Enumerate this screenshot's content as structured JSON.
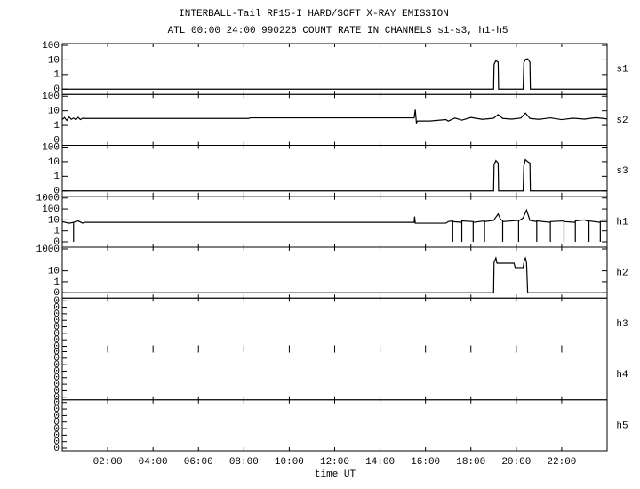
{
  "header": {
    "title": "INTERBALL-Tail RF15-I HARD/SOFT X-RAY EMISSION",
    "subtitle": "ATL 00:00 24:00 990226  COUNT RATE IN CHANNELS s1-s3, h1-h5"
  },
  "x_axis": {
    "label": "time UT",
    "xlim": [
      0,
      24
    ],
    "xticks": [
      {
        "value": 2,
        "label": "02:00"
      },
      {
        "value": 4,
        "label": "04:00"
      },
      {
        "value": 6,
        "label": "06:00"
      },
      {
        "value": 8,
        "label": "08:00"
      },
      {
        "value": 10,
        "label": "10:00"
      },
      {
        "value": 12,
        "label": "12:00"
      },
      {
        "value": 14,
        "label": "14:00"
      },
      {
        "value": 16,
        "label": "16:00"
      },
      {
        "value": 18,
        "label": "18:00"
      },
      {
        "value": 20,
        "label": "20:00"
      },
      {
        "value": 22,
        "label": "22:00"
      }
    ]
  },
  "chart_data": [
    {
      "type": "line",
      "name": "s1",
      "log_scale": true,
      "ylim": [
        0.1,
        100
      ],
      "yticks": [
        {
          "value": 0.1,
          "label": "0"
        },
        1,
        10,
        100
      ],
      "series": [
        {
          "color": "#000000",
          "x": [
            0,
            19.0,
            19.02,
            19.1,
            19.2,
            19.22,
            20.3,
            20.33,
            20.4,
            20.5,
            20.6,
            20.62,
            24
          ],
          "values": [
            0.1,
            0.1,
            5,
            9,
            7,
            0.1,
            0.1,
            6,
            11,
            12,
            7,
            0.1,
            0.1
          ]
        }
      ]
    },
    {
      "type": "line",
      "name": "s2",
      "log_scale": true,
      "ylim": [
        0.1,
        100
      ],
      "yticks": [
        {
          "value": 0.1,
          "label": "0"
        },
        1,
        10,
        100
      ],
      "series": [
        {
          "color": "#000000",
          "x": [
            0,
            0.1,
            0.2,
            0.3,
            0.4,
            0.5,
            0.6,
            0.7,
            0.8,
            0.9,
            1.0,
            8.2,
            8.3,
            15.5,
            15.55,
            15.6,
            15.65,
            16.2,
            16.9,
            17.0,
            17.3,
            17.6,
            18.0,
            18.5,
            19.0,
            19.2,
            19.4,
            19.8,
            20.2,
            20.4,
            20.6,
            21.0,
            21.5,
            22.0,
            22.5,
            23.0,
            23.5,
            24.0
          ],
          "values": [
            2.5,
            3.5,
            2.2,
            3.8,
            2.6,
            3.2,
            2.4,
            3.6,
            2.5,
            3.1,
            3,
            3,
            3.3,
            3.3,
            12,
            1.5,
            2,
            2,
            2.5,
            2,
            3.2,
            2.3,
            3.5,
            2.6,
            3.1,
            5.5,
            3,
            2.7,
            3.2,
            7,
            3,
            2.6,
            3.3,
            2.5,
            3.1,
            2.7,
            3.4,
            2.8
          ]
        }
      ]
    },
    {
      "type": "line",
      "name": "s3",
      "log_scale": true,
      "ylim": [
        0.1,
        100
      ],
      "yticks": [
        {
          "value": 0.1,
          "label": "0"
        },
        1,
        10,
        100
      ],
      "series": [
        {
          "color": "#000000",
          "x": [
            0,
            19.0,
            19.02,
            19.1,
            19.2,
            19.22,
            20.3,
            20.33,
            20.4,
            20.5,
            20.6,
            20.62,
            24
          ],
          "values": [
            0.1,
            0.1,
            6,
            12,
            8,
            0.1,
            0.1,
            5,
            14,
            10,
            8,
            0.1,
            0.1
          ]
        }
      ]
    },
    {
      "type": "line",
      "name": "h1",
      "log_scale": true,
      "ylim": [
        0.1,
        1000
      ],
      "yticks": [
        {
          "value": 0.1,
          "label": "0"
        },
        1,
        10,
        100,
        1000
      ],
      "series": [
        {
          "color": "#000000",
          "x": [
            0,
            0.3,
            0.5,
            0.5,
            0.5,
            0.7,
            0.9,
            1.0,
            15.5,
            15.52,
            15.55,
            15.6,
            16.9,
            17.0,
            17.2,
            17.2,
            17.2,
            17.6,
            17.6,
            17.6,
            18.1,
            18.1,
            18.1,
            18.6,
            18.6,
            18.6,
            19.0,
            19.2,
            19.3,
            19.4,
            19.4,
            19.4,
            19.8,
            20.1,
            20.1,
            20.1,
            20.3,
            20.45,
            20.6,
            20.9,
            20.9,
            20.9,
            21.5,
            21.5,
            21.5,
            22.1,
            22.1,
            22.1,
            22.6,
            22.6,
            22.6,
            23.0,
            23.2,
            23.2,
            23.2,
            23.7,
            23.7,
            23.7,
            24.0
          ],
          "values": [
            7,
            5,
            6,
            0.1,
            6,
            8,
            5,
            6,
            6,
            20,
            5,
            5,
            5,
            7,
            8,
            0.1,
            7,
            6,
            0.1,
            8,
            7,
            0.1,
            6,
            8,
            0.1,
            7,
            9,
            35,
            12,
            8,
            0.1,
            7,
            8,
            9,
            0.1,
            8,
            15,
            80,
            9,
            7,
            0.1,
            8,
            6,
            0.1,
            7,
            8,
            0.1,
            7,
            6,
            0.1,
            8,
            10,
            7,
            0.1,
            8,
            6,
            0.1,
            7,
            7
          ]
        }
      ]
    },
    {
      "type": "line",
      "name": "h2",
      "log_scale": true,
      "ylim": [
        0.1,
        1000
      ],
      "yticks": [
        {
          "value": 0.1,
          "label": "0"
        },
        1,
        10,
        1000
      ],
      "series": [
        {
          "color": "#000000",
          "x": [
            0,
            19.0,
            19.02,
            19.1,
            19.15,
            19.2,
            19.9,
            19.95,
            20.3,
            20.35,
            20.4,
            20.45,
            20.5,
            20.55,
            24
          ],
          "values": [
            0.1,
            0.1,
            60,
            150,
            50,
            50,
            50,
            20,
            20,
            90,
            150,
            60,
            0.1,
            0.1,
            0.1
          ]
        }
      ]
    },
    {
      "type": "empty",
      "name": "h3",
      "ytick_labels": [
        "0",
        "0",
        "0",
        "0",
        "0",
        "0",
        "0",
        "0"
      ]
    },
    {
      "type": "empty",
      "name": "h4",
      "ytick_labels": [
        "0",
        "0",
        "0",
        "0",
        "0",
        "0",
        "0",
        "0"
      ]
    },
    {
      "type": "empty",
      "name": "h5",
      "ytick_labels": [
        "0",
        "0",
        "0",
        "0",
        "0",
        "0",
        "0",
        "0"
      ]
    }
  ]
}
